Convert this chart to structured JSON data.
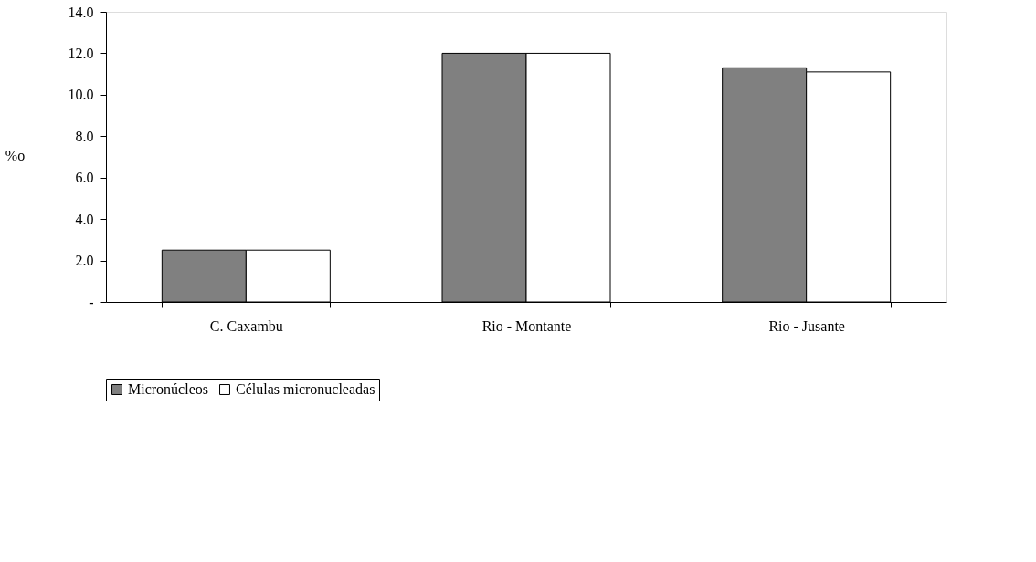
{
  "chart_data": {
    "type": "bar",
    "ylabel": "%o",
    "categories": [
      "C. Caxambu",
      "Rio - Montante",
      "Rio - Jusante"
    ],
    "series": [
      {
        "name": "Micronúcleos",
        "color": "#808080",
        "values": [
          2.5,
          12.0,
          11.3
        ]
      },
      {
        "name": "Células micronucleadas",
        "color": "#ffffff",
        "values": [
          2.5,
          12.0,
          11.1
        ]
      }
    ],
    "ylim": [
      0,
      14
    ],
    "yticks": [
      {
        "value": 0,
        "label": "-"
      },
      {
        "value": 2,
        "label": "2.0"
      },
      {
        "value": 4,
        "label": "4.0"
      },
      {
        "value": 6,
        "label": "6.0"
      },
      {
        "value": 8,
        "label": "8.0"
      },
      {
        "value": 10,
        "label": "10.0"
      },
      {
        "value": 12,
        "label": "12.0"
      },
      {
        "value": 14,
        "label": "14.0"
      }
    ],
    "grid": false,
    "legend": "bottom"
  }
}
